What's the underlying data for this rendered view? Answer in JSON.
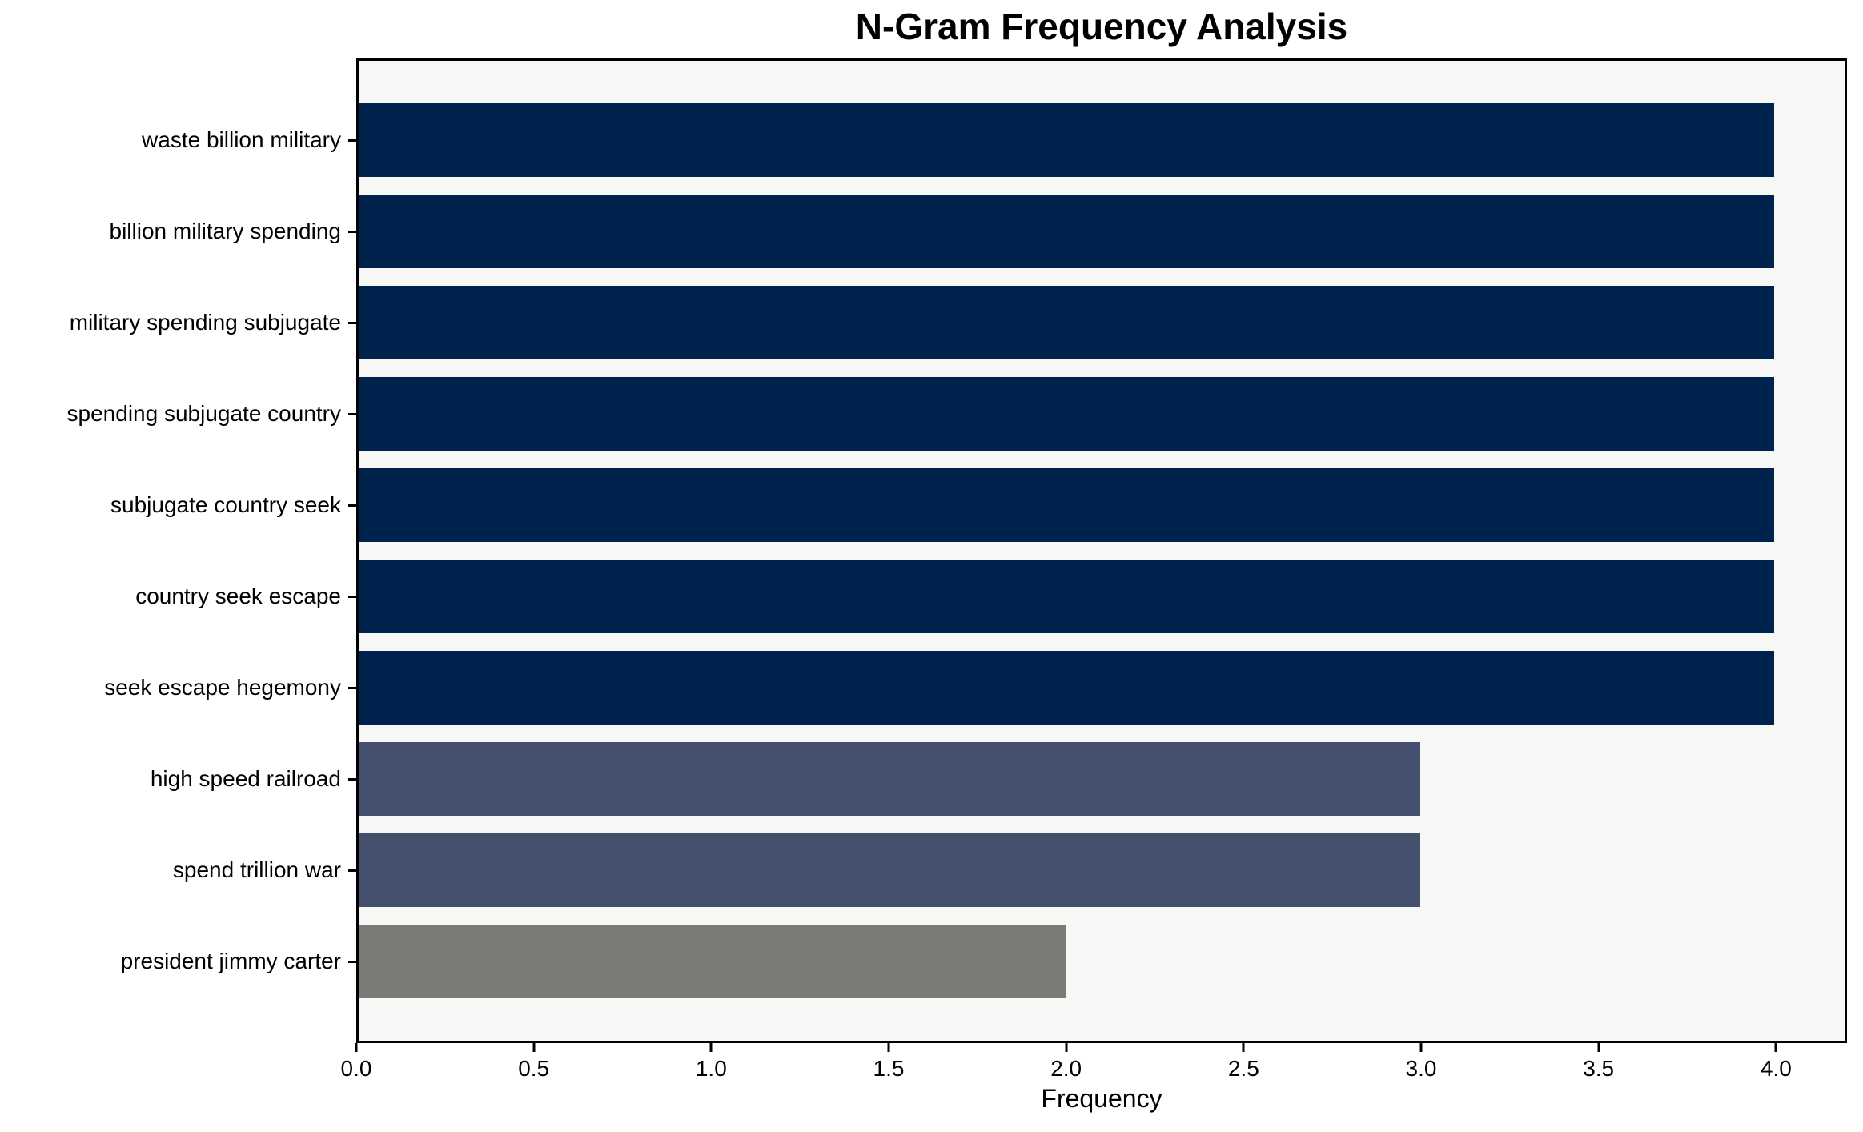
{
  "title": "N-Gram Frequency Analysis",
  "chart_data": {
    "type": "bar",
    "orientation": "horizontal",
    "title": "N-Gram Frequency Analysis",
    "xlabel": "Frequency",
    "ylabel": "",
    "categories": [
      "waste billion military",
      "billion military spending",
      "military spending subjugate",
      "spending subjugate country",
      "subjugate country seek",
      "country seek escape",
      "seek escape hegemony",
      "high speed railroad",
      "spend trillion war",
      "president jimmy carter"
    ],
    "values": [
      4,
      4,
      4,
      4,
      4,
      4,
      4,
      3,
      3,
      2
    ],
    "bar_colors": [
      "#00234d",
      "#00234d",
      "#00234d",
      "#00234d",
      "#00234d",
      "#00234d",
      "#00234d",
      "#454f6e",
      "#454f6e",
      "#7a7a77"
    ],
    "xlim": [
      0,
      4.2
    ],
    "xticks": [
      0,
      0.5,
      1,
      1.5,
      2,
      2.5,
      3,
      3.5,
      4
    ],
    "xtick_labels": [
      "0.0",
      "0.5",
      "1.0",
      "1.5",
      "2.0",
      "2.5",
      "3.0",
      "3.5",
      "4.0"
    ],
    "grid": false,
    "legend": null,
    "plot_bg": "#f7f7f6",
    "frame_color": "#000000"
  }
}
